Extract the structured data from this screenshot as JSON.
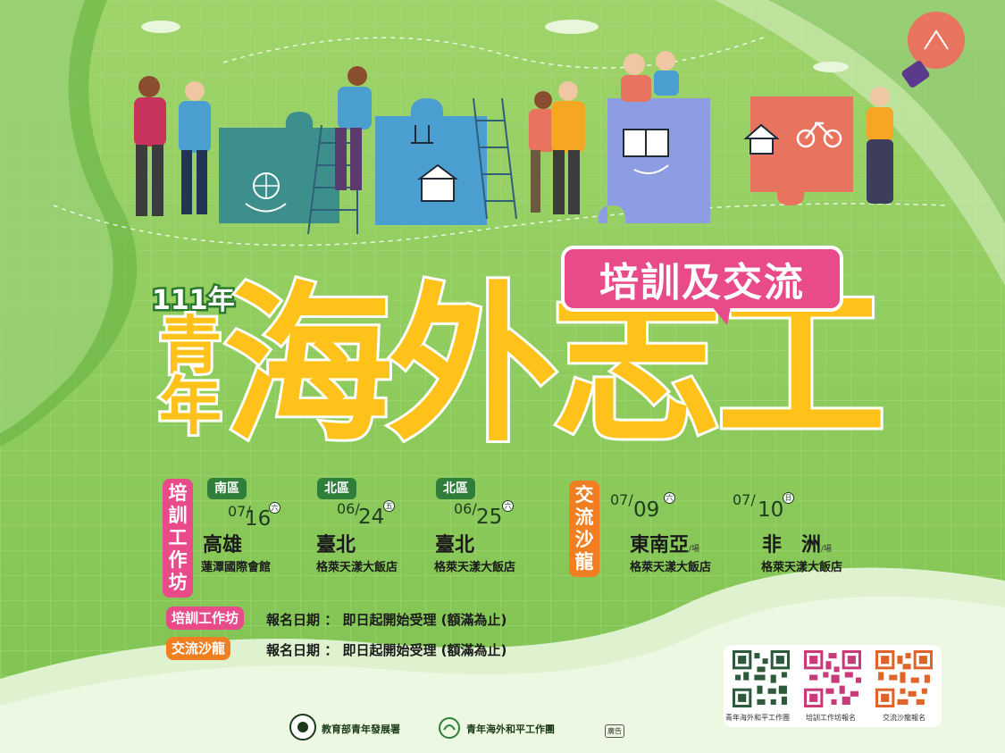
{
  "colors": {
    "pink": "#e84a8a",
    "orange": "#f07f22",
    "yellow": "#ffc21a",
    "green_dark": "#2f7f3a",
    "bg": "#8cc95a"
  },
  "title": {
    "year": "111年",
    "youth_1": "青",
    "youth_2": "年",
    "main": "海外志工",
    "subtitle": "培訓及交流"
  },
  "workshop": {
    "label": "培訓工作坊",
    "sessions": [
      {
        "region": "南區",
        "month": "07/",
        "day": "16",
        "weekday": "六",
        "city": "高雄",
        "venue": "蓮潭國際會館"
      },
      {
        "region": "北區",
        "month": "06/",
        "day": "24",
        "weekday": "五",
        "city": "臺北",
        "venue": "格萊天漾大飯店"
      },
      {
        "region": "北區",
        "month": "06/",
        "day": "25",
        "weekday": "六",
        "city": "臺北",
        "venue": "格萊天漾大飯店"
      }
    ]
  },
  "salon": {
    "label": "交流沙龍",
    "sessions": [
      {
        "month": "07/",
        "day": "09",
        "weekday": "六",
        "city": "東南亞",
        "unit": "/場",
        "venue": "格萊天漾大飯店"
      },
      {
        "month": "07/",
        "day": "10",
        "weekday": "日",
        "city": "非　洲",
        "unit": "/場",
        "venue": "格萊天漾大飯店"
      }
    ]
  },
  "registration": [
    {
      "label": "培訓工作坊",
      "text": "報名日期 ： 即日起開始受理 (額滿為止)"
    },
    {
      "label": "交流沙龍",
      "text": "報名日期 ： 即日起開始受理 (額滿為止)"
    }
  ],
  "qr_codes": [
    {
      "caption": "青年海外和平工作團"
    },
    {
      "caption": "培訓工作坊報名"
    },
    {
      "caption": "交流沙龍報名"
    }
  ],
  "footer": {
    "org1": "教育部青年發展署",
    "org2": "青年海外和平工作團",
    "ad": "廣告"
  }
}
